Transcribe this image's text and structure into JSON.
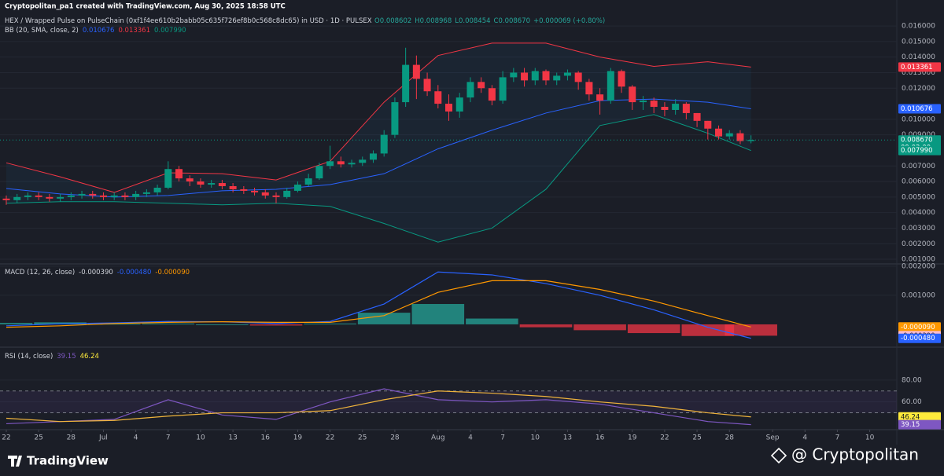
{
  "header": {
    "credit": "Cryptopolitan_pa1 created with TradingView.com, Aug 30, 2025 18:58 UTC",
    "symbol": "HEX / Wrapped Pulse on PulseChain (0xf1f4ee610b2babb05c635f726ef8b0c568c8dc65) in USD · 1D · PULSEX",
    "ohlc": [
      "O0.008602",
      "H0.008968",
      "L0.008454",
      "C0.008670",
      "+0.000069 (+0.80%)"
    ]
  },
  "footer": {
    "brand": "TradingView",
    "watermark": "@ Cryptopolitan"
  },
  "chart_data": [
    {
      "type": "candlestick",
      "up_color": "#089981",
      "down_color": "#f23645",
      "x": [
        "2025-06-22",
        "2025-06-23",
        "2025-06-24",
        "2025-06-25",
        "2025-06-26",
        "2025-06-27",
        "2025-06-28",
        "2025-06-29",
        "2025-06-30",
        "2025-07-01",
        "2025-07-02",
        "2025-07-03",
        "2025-07-04",
        "2025-07-05",
        "2025-07-06",
        "2025-07-07",
        "2025-07-08",
        "2025-07-09",
        "2025-07-10",
        "2025-07-11",
        "2025-07-12",
        "2025-07-13",
        "2025-07-14",
        "2025-07-15",
        "2025-07-16",
        "2025-07-17",
        "2025-07-18",
        "2025-07-19",
        "2025-07-20",
        "2025-07-21",
        "2025-07-22",
        "2025-07-23",
        "2025-07-24",
        "2025-07-25",
        "2025-07-26",
        "2025-07-27",
        "2025-07-28",
        "2025-07-29",
        "2025-07-30",
        "2025-07-31",
        "2025-08-01",
        "2025-08-02",
        "2025-08-03",
        "2025-08-04",
        "2025-08-05",
        "2025-08-06",
        "2025-08-07",
        "2025-08-08",
        "2025-08-09",
        "2025-08-10",
        "2025-08-11",
        "2025-08-12",
        "2025-08-13",
        "2025-08-14",
        "2025-08-15",
        "2025-08-16",
        "2025-08-17",
        "2025-08-18",
        "2025-08-19",
        "2025-08-20",
        "2025-08-21",
        "2025-08-22",
        "2025-08-23",
        "2025-08-24",
        "2025-08-25",
        "2025-08-26",
        "2025-08-27",
        "2025-08-28",
        "2025-08-29",
        "2025-08-30"
      ],
      "open": [
        0.0049,
        0.0048,
        0.005,
        0.0051,
        0.005,
        0.0049,
        0.005,
        0.0051,
        0.0052,
        0.0051,
        0.005,
        0.0051,
        0.005,
        0.0052,
        0.0053,
        0.0056,
        0.0068,
        0.0062,
        0.006,
        0.0058,
        0.0059,
        0.0057,
        0.0055,
        0.0054,
        0.0053,
        0.0051,
        0.005,
        0.0054,
        0.0058,
        0.0062,
        0.007,
        0.0073,
        0.0071,
        0.0072,
        0.0074,
        0.0078,
        0.009,
        0.0111,
        0.0135,
        0.0126,
        0.0118,
        0.011,
        0.0105,
        0.0114,
        0.0124,
        0.012,
        0.0112,
        0.0127,
        0.013,
        0.0125,
        0.0131,
        0.0125,
        0.0128,
        0.013,
        0.0124,
        0.0116,
        0.0112,
        0.0131,
        0.0121,
        0.0111,
        0.0112,
        0.0108,
        0.0106,
        0.011,
        0.0104,
        0.0099,
        0.0094,
        0.0089,
        0.0091,
        0.008602
      ],
      "high": [
        0.0051,
        0.0052,
        0.0053,
        0.0053,
        0.0052,
        0.0052,
        0.0053,
        0.0054,
        0.0054,
        0.0053,
        0.0053,
        0.0053,
        0.0054,
        0.0055,
        0.0058,
        0.0073,
        0.007,
        0.0064,
        0.0062,
        0.0061,
        0.0061,
        0.0059,
        0.0057,
        0.0056,
        0.0055,
        0.0053,
        0.0056,
        0.006,
        0.0065,
        0.0072,
        0.0083,
        0.0076,
        0.0074,
        0.0076,
        0.008,
        0.0093,
        0.0114,
        0.0146,
        0.0141,
        0.013,
        0.0122,
        0.0116,
        0.0117,
        0.0127,
        0.0127,
        0.0122,
        0.0131,
        0.0133,
        0.0133,
        0.0133,
        0.0132,
        0.013,
        0.0132,
        0.0131,
        0.0126,
        0.012,
        0.0133,
        0.0132,
        0.0122,
        0.0115,
        0.0114,
        0.0111,
        0.0113,
        0.0111,
        0.0104,
        0.0099,
        0.0096,
        0.0093,
        0.0093,
        0.008968
      ],
      "low": [
        0.0045,
        0.0046,
        0.0048,
        0.0048,
        0.0047,
        0.0047,
        0.0048,
        0.0049,
        0.0049,
        0.0048,
        0.0048,
        0.0048,
        0.0048,
        0.005,
        0.0051,
        0.0055,
        0.006,
        0.0057,
        0.0056,
        0.0056,
        0.0055,
        0.0053,
        0.0052,
        0.0051,
        0.0049,
        0.0046,
        0.0049,
        0.0053,
        0.0057,
        0.0061,
        0.0068,
        0.0069,
        0.0069,
        0.007,
        0.0072,
        0.0076,
        0.0088,
        0.0108,
        0.0113,
        0.0115,
        0.0107,
        0.0099,
        0.0101,
        0.0111,
        0.0117,
        0.0109,
        0.011,
        0.0124,
        0.0121,
        0.0122,
        0.0122,
        0.0122,
        0.0125,
        0.0119,
        0.0112,
        0.0103,
        0.011,
        0.0117,
        0.0106,
        0.0106,
        0.0104,
        0.0102,
        0.0103,
        0.01,
        0.0095,
        0.0087,
        0.0087,
        0.0087,
        0.0084,
        0.008454
      ],
      "close": [
        0.0048,
        0.005,
        0.0051,
        0.005,
        0.0049,
        0.005,
        0.0051,
        0.0052,
        0.0051,
        0.005,
        0.0051,
        0.005,
        0.0052,
        0.0053,
        0.0056,
        0.0068,
        0.0062,
        0.006,
        0.0058,
        0.0059,
        0.0057,
        0.0055,
        0.0054,
        0.0053,
        0.0051,
        0.005,
        0.0054,
        0.0058,
        0.0062,
        0.007,
        0.0073,
        0.0071,
        0.0072,
        0.0074,
        0.0078,
        0.009,
        0.0111,
        0.0135,
        0.0126,
        0.0118,
        0.011,
        0.0105,
        0.0114,
        0.0124,
        0.012,
        0.0112,
        0.0127,
        0.013,
        0.0125,
        0.0131,
        0.0125,
        0.0128,
        0.013,
        0.0124,
        0.0116,
        0.0112,
        0.0131,
        0.0121,
        0.0111,
        0.0112,
        0.0108,
        0.0106,
        0.011,
        0.0104,
        0.0099,
        0.0094,
        0.0089,
        0.0091,
        0.0086,
        0.00867
      ],
      "ylim": [
        0.00075,
        0.01666
      ],
      "yticks": [
        {
          "value": 0.016,
          "label": "0.016000"
        },
        {
          "value": 0.015,
          "label": "0.015000"
        },
        {
          "value": 0.014,
          "label": "0.014000"
        },
        {
          "value": 0.013,
          "label": "0.013000"
        },
        {
          "value": 0.012,
          "label": "0.012000"
        },
        {
          "value": 0.01,
          "label": "0.010000"
        },
        {
          "value": 0.009,
          "label": "0.009000"
        },
        {
          "value": 0.007,
          "label": "0.007000"
        },
        {
          "value": 0.006,
          "label": "0.006000"
        },
        {
          "value": 0.005,
          "label": "0.005000"
        },
        {
          "value": 0.004,
          "label": "0.004000"
        },
        {
          "value": 0.003,
          "label": "0.003000"
        },
        {
          "value": 0.002,
          "label": "0.002000"
        },
        {
          "value": 0.001,
          "label": "0.001000"
        }
      ],
      "indicator": {
        "title": "BB (20, SMA, close, 2)",
        "legend_values": [
          "0.010676",
          "0.013361",
          "0.007990"
        ],
        "legend_colors": [
          "#2962ff",
          "#f23645",
          "#089981"
        ],
        "x": [
          "2025-06-22",
          "2025-06-27",
          "2025-07-02",
          "2025-07-07",
          "2025-07-12",
          "2025-07-17",
          "2025-07-22",
          "2025-07-27",
          "2025-08-01",
          "2025-08-06",
          "2025-08-11",
          "2025-08-16",
          "2025-08-21",
          "2025-08-26",
          "2025-08-30"
        ],
        "series": [
          {
            "color": "#f23645",
            "values": [
              0.0072,
              0.0063,
              0.0053,
              0.00656,
              0.0065,
              0.0061,
              0.0073,
              0.0111,
              0.0141,
              0.0149,
              0.0149,
              0.014,
              0.0134,
              0.0137,
              0.013361
            ]
          },
          {
            "color": "#2962ff",
            "values": [
              0.00555,
              0.0052,
              0.005,
              0.0051,
              0.0054,
              0.0055,
              0.0058,
              0.0065,
              0.0081,
              0.0093,
              0.0104,
              0.0112,
              0.0113,
              0.0111,
              0.010676
            ]
          },
          {
            "color": "#089981",
            "values": [
              0.0046,
              0.0047,
              0.0047,
              0.0046,
              0.0045,
              0.0046,
              0.0044,
              0.0033,
              0.0021,
              0.003,
              0.0055,
              0.0096,
              0.0103,
              0.0091,
              0.00799
            ]
          }
        ]
      },
      "price_labels": [
        {
          "value": 0.013361,
          "color": "#f23645"
        },
        {
          "value": 0.010676,
          "color": "#2962ff"
        },
        {
          "value": 0.00867,
          "label": "0.008670",
          "sub": "09:02:00",
          "color": "#089981"
        },
        {
          "value": 0.00799,
          "label": "0.007990",
          "color": "#089981"
        }
      ]
    },
    {
      "type": "macd",
      "title": "MACD (12, 26, close)",
      "legend_values": [
        "-0.000390",
        "-0.000480",
        "-0.000090"
      ],
      "legend_colors": [
        "#d1d4dc",
        "#2962ff",
        "#ff9800"
      ],
      "x": [
        "2025-06-22",
        "2025-06-27",
        "2025-07-02",
        "2025-07-07",
        "2025-07-12",
        "2025-07-17",
        "2025-07-22",
        "2025-07-27",
        "2025-08-01",
        "2025-08-06",
        "2025-08-11",
        "2025-08-16",
        "2025-08-21",
        "2025-08-26",
        "2025-08-30"
      ],
      "histogram": {
        "up_color": "#26a69a",
        "down_color": "#f23645",
        "values": [
          5e-05,
          7e-05,
          2e-05,
          3e-05,
          0,
          -4e-05,
          3e-05,
          0.0004,
          0.0007,
          0.0002,
          -0.0001,
          -0.0002,
          -0.0003,
          -0.0004,
          -0.00039
        ]
      },
      "series": [
        {
          "color": "#2962ff",
          "values": [
            -5e-05,
            2e-05,
            5e-05,
            0.0001,
            9e-05,
            3e-05,
            0.0001,
            0.0007,
            0.0018,
            0.0017,
            0.0014,
            0.001,
            0.0005,
            -0.0001,
            -0.00048
          ]
        },
        {
          "color": "#ff9800",
          "values": [
            -0.0001,
            -5e-05,
            3e-05,
            7e-05,
            9e-05,
            7e-05,
            7e-05,
            0.0003,
            0.0011,
            0.0015,
            0.0015,
            0.0012,
            0.0008,
            0.0003,
            -9e-05
          ]
        }
      ],
      "ylim": [
        -0.00073,
        0.00205
      ],
      "yticks": [
        {
          "value": 0.002,
          "label": "0.002000"
        },
        {
          "value": 0.001,
          "label": "0.001000"
        }
      ],
      "price_labels": [
        {
          "value": -9e-05,
          "label": "-0.000090",
          "color": "#ff9800"
        },
        {
          "value": -0.00039,
          "label": "-0.000390",
          "color": "#f8bbd0",
          "dark": true
        },
        {
          "value": -0.00048,
          "label": "-0.000480",
          "color": "#2962ff"
        }
      ]
    },
    {
      "type": "rsi",
      "title": "RSI (14, close)",
      "legend_values": [
        "39.15",
        "46.24"
      ],
      "legend_colors": [
        "#7e57c2",
        "#ffeb3b"
      ],
      "x": [
        "2025-06-22",
        "2025-06-27",
        "2025-07-02",
        "2025-07-07",
        "2025-07-12",
        "2025-07-17",
        "2025-07-22",
        "2025-07-27",
        "2025-08-01",
        "2025-08-06",
        "2025-08-11",
        "2025-08-16",
        "2025-08-21",
        "2025-08-26",
        "2025-08-30"
      ],
      "series": [
        {
          "color": "#7e57c2",
          "values": [
            40,
            42,
            44,
            62,
            48,
            44,
            60,
            72,
            62,
            60,
            62,
            58,
            50,
            42,
            39.15
          ]
        },
        {
          "color": "#f0b43c",
          "values": [
            45,
            42,
            43,
            47,
            50,
            50,
            52,
            62,
            70,
            68,
            65,
            60,
            56,
            50,
            46.24
          ]
        }
      ],
      "band": [
        50,
        70
      ],
      "ylim": [
        36,
        108
      ],
      "yticks": [
        {
          "value": 80,
          "label": "80.00"
        },
        {
          "value": 60,
          "label": "60.00"
        }
      ],
      "price_labels": [
        {
          "value": 46.24,
          "color": "#ffeb3b",
          "dark": true
        },
        {
          "value": 39.15,
          "color": "#7e57c2"
        }
      ],
      "xticks": [
        {
          "value": "2025-06-22",
          "label": "22"
        },
        {
          "value": "2025-06-25",
          "label": "25"
        },
        {
          "value": "2025-06-28",
          "label": "28"
        },
        {
          "value": "2025-07-01",
          "label": "Jul"
        },
        {
          "value": "2025-07-04",
          "label": "4"
        },
        {
          "value": "2025-07-07",
          "label": "7"
        },
        {
          "value": "2025-07-10",
          "label": "10"
        },
        {
          "value": "2025-07-13",
          "label": "13"
        },
        {
          "value": "2025-07-16",
          "label": "16"
        },
        {
          "value": "2025-07-19",
          "label": "19"
        },
        {
          "value": "2025-07-22",
          "label": "22"
        },
        {
          "value": "2025-07-25",
          "label": "25"
        },
        {
          "value": "2025-07-28",
          "label": "28"
        },
        {
          "value": "2025-08-01",
          "label": "Aug"
        },
        {
          "value": "2025-08-04",
          "label": "4"
        },
        {
          "value": "2025-08-07",
          "label": "7"
        },
        {
          "value": "2025-08-10",
          "label": "10"
        },
        {
          "value": "2025-08-13",
          "label": "13"
        },
        {
          "value": "2025-08-16",
          "label": "16"
        },
        {
          "value": "2025-08-19",
          "label": "19"
        },
        {
          "value": "2025-08-22",
          "label": "22"
        },
        {
          "value": "2025-08-25",
          "label": "25"
        },
        {
          "value": "2025-08-28",
          "label": "28"
        },
        {
          "value": "2025-09-01",
          "label": "Sep"
        },
        {
          "value": "2025-09-04",
          "label": "4"
        },
        {
          "value": "2025-09-07",
          "label": "7"
        },
        {
          "value": "2025-09-10",
          "label": "10"
        },
        {
          "value": "2025-09-13",
          "label": "13"
        }
      ]
    }
  ]
}
